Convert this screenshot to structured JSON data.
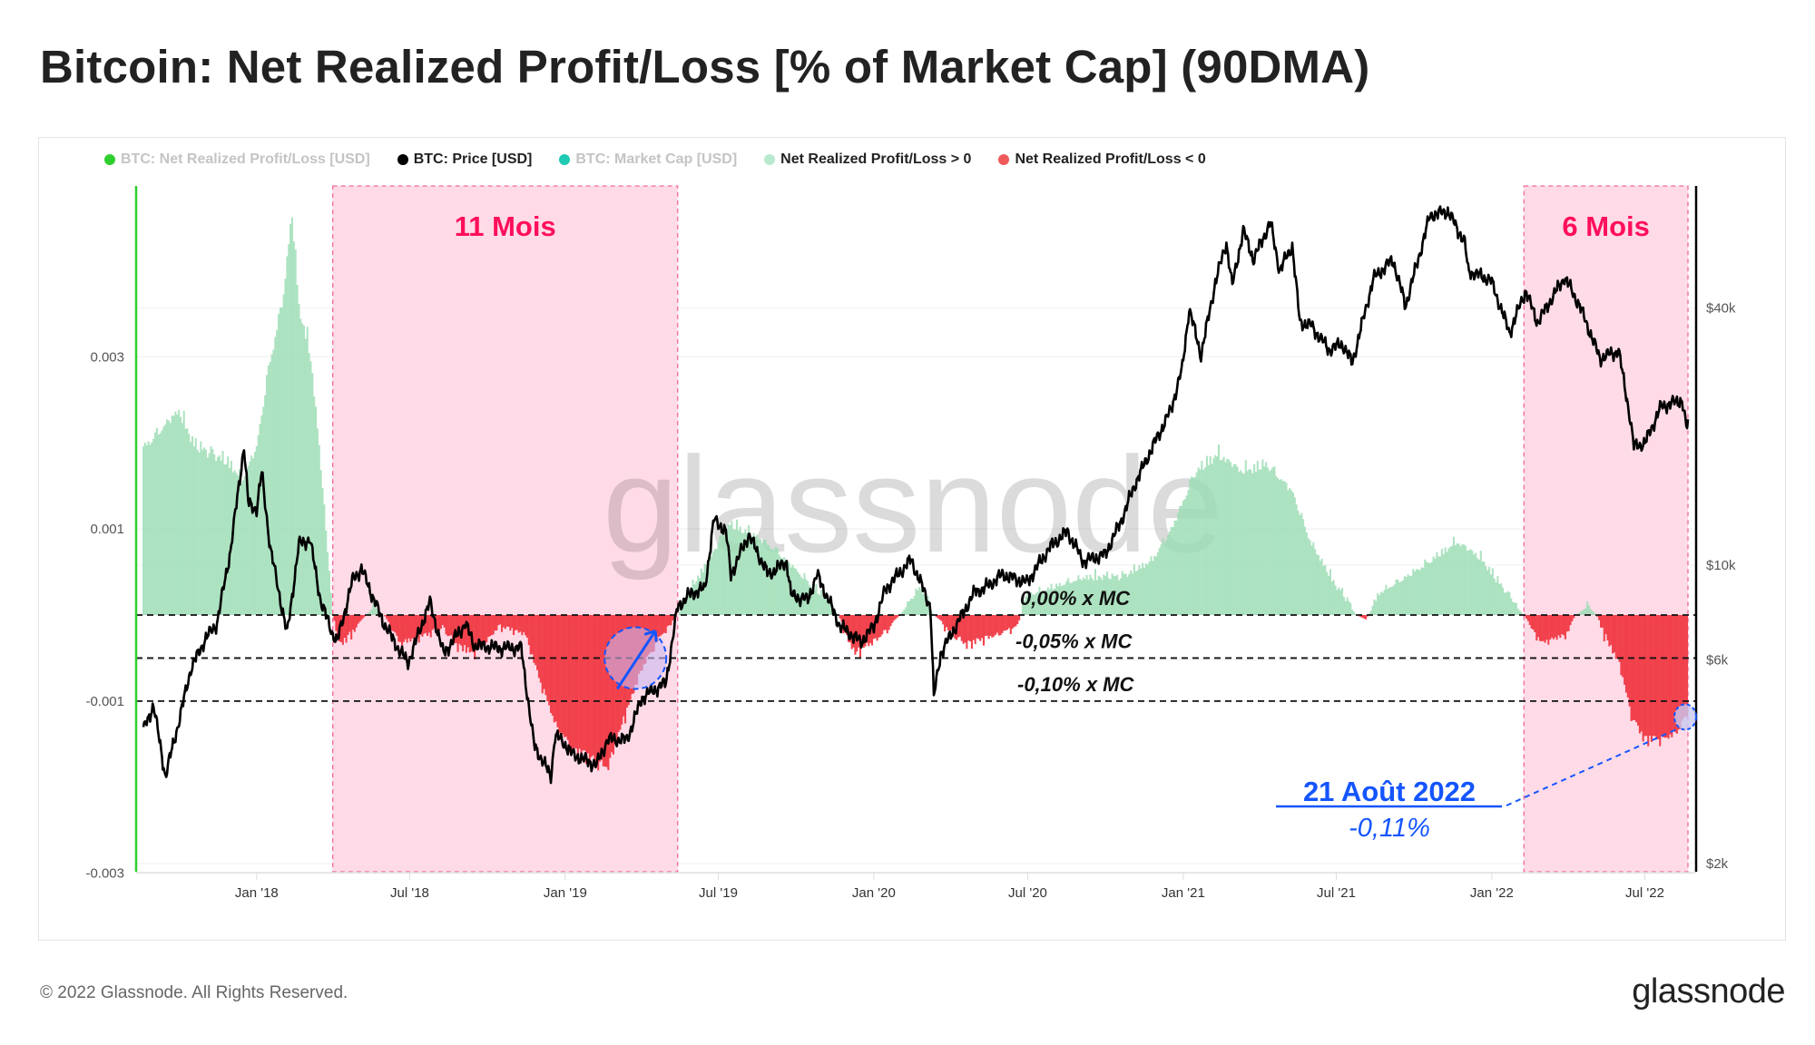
{
  "title": "Bitcoin: Net Realized Profit/Loss [% of Market Cap] (90DMA)",
  "legend": [
    {
      "label": "BTC: Net Realized Profit/Loss [USD]",
      "color": "#2fcf2f",
      "muted": true
    },
    {
      "label": "BTC: Price [USD]",
      "color": "#000000",
      "muted": false
    },
    {
      "label": "BTC: Market Cap [USD]",
      "color": "#1fc9b4",
      "muted": true
    },
    {
      "label": "Net Realized Profit/Loss > 0",
      "color": "#b9ead0",
      "muted": false
    },
    {
      "label": "Net Realized Profit/Loss < 0",
      "color": "#f05a5a",
      "muted": false
    }
  ],
  "watermark": "glassnode",
  "footer": {
    "copyright": "© 2022 Glassnode. All Rights Reserved.",
    "logo": "glassnode"
  },
  "annotations": {
    "periods": [
      {
        "label": "11 Mois",
        "start": "2018-04-01",
        "end": "2019-05-14"
      },
      {
        "label": "6 Mois",
        "start": "2022-02-08",
        "end": "2022-08-21"
      }
    ],
    "levels": [
      {
        "label": "0,00% x MC",
        "value": 0
      },
      {
        "label": "-0,05% x MC",
        "value": -0.0005
      },
      {
        "label": "-0,10% x MC",
        "value": -0.001
      }
    ],
    "callout": {
      "date_label": "21 Août 2022",
      "value_label": "-0,11%",
      "date": "2022-08-21",
      "value": -0.0011
    },
    "highlight_circle": {
      "date": "2019-03-25",
      "value": -0.0005
    }
  },
  "colors": {
    "positive": "#9adcb3",
    "negative": "#f03a44",
    "price": "#000000",
    "period_fill": "#ffd9e7",
    "period_border": "#f06a9a",
    "period_label": "#ff0f5b",
    "annotation": "#1455ff"
  },
  "chart_data": {
    "type": "bar+line",
    "x_range": [
      "2017-08-20",
      "2022-08-21"
    ],
    "x_ticks": [
      {
        "label": "Jan '18",
        "date": "2018-01-01"
      },
      {
        "label": "Jul '18",
        "date": "2018-07-01"
      },
      {
        "label": "Jan '19",
        "date": "2019-01-01"
      },
      {
        "label": "Jul '19",
        "date": "2019-07-01"
      },
      {
        "label": "Jan '20",
        "date": "2020-01-01"
      },
      {
        "label": "Jul '20",
        "date": "2020-07-01"
      },
      {
        "label": "Jan '21",
        "date": "2021-01-01"
      },
      {
        "label": "Jul '21",
        "date": "2021-07-01"
      },
      {
        "label": "Jan '22",
        "date": "2022-01-01"
      },
      {
        "label": "Jul '22",
        "date": "2022-07-01"
      }
    ],
    "y_left": {
      "ticks": [
        {
          "label": "0.003",
          "value": 0.003
        },
        {
          "label": "0.001",
          "value": 0.001
        },
        {
          "label": "-0.001",
          "value": -0.001
        },
        {
          "label": "-0.003",
          "value": -0.003
        }
      ]
    },
    "y_right": {
      "scale": "log",
      "ticks": [
        {
          "label": "$40k",
          "value": 40000
        },
        {
          "label": "$10k",
          "value": 10000
        },
        {
          "label": "$6k",
          "value": 6000
        },
        {
          "label": "$2k",
          "value": 2000
        }
      ]
    },
    "grid": true,
    "series": [
      {
        "name": "BTC: Price [USD]",
        "axis": "right",
        "type": "line",
        "points": [
          [
            "2017-08-20",
            4100
          ],
          [
            "2017-09-01",
            4700
          ],
          [
            "2017-09-15",
            3200
          ],
          [
            "2017-10-01",
            4300
          ],
          [
            "2017-10-15",
            5700
          ],
          [
            "2017-11-01",
            6700
          ],
          [
            "2017-11-15",
            7300
          ],
          [
            "2017-12-01",
            10800
          ],
          [
            "2017-12-17",
            19000
          ],
          [
            "2017-12-22",
            14000
          ],
          [
            "2018-01-01",
            13500
          ],
          [
            "2018-01-07",
            16500
          ],
          [
            "2018-01-17",
            11000
          ],
          [
            "2018-02-06",
            6900
          ],
          [
            "2018-02-20",
            11200
          ],
          [
            "2018-03-05",
            11500
          ],
          [
            "2018-03-18",
            8200
          ],
          [
            "2018-04-01",
            6900
          ],
          [
            "2018-04-06",
            6600
          ],
          [
            "2018-04-25",
            9300
          ],
          [
            "2018-05-05",
            9800
          ],
          [
            "2018-05-30",
            7400
          ],
          [
            "2018-06-15",
            6500
          ],
          [
            "2018-06-29",
            5900
          ],
          [
            "2018-07-25",
            8200
          ],
          [
            "2018-08-10",
            6200
          ],
          [
            "2018-09-05",
            7300
          ],
          [
            "2018-09-15",
            6500
          ],
          [
            "2018-10-15",
            6400
          ],
          [
            "2018-11-10",
            6400
          ],
          [
            "2018-11-20",
            4500
          ],
          [
            "2018-11-25",
            3800
          ],
          [
            "2018-12-15",
            3200
          ],
          [
            "2018-12-20",
            4000
          ],
          [
            "2019-01-01",
            3800
          ],
          [
            "2019-01-10",
            3600
          ],
          [
            "2019-02-07",
            3400
          ],
          [
            "2019-02-20",
            3900
          ],
          [
            "2019-03-15",
            3900
          ],
          [
            "2019-04-02",
            4900
          ],
          [
            "2019-04-30",
            5300
          ],
          [
            "2019-05-14",
            8000
          ],
          [
            "2019-05-30",
            8600
          ],
          [
            "2019-06-15",
            8800
          ],
          [
            "2019-06-26",
            12800
          ],
          [
            "2019-07-10",
            12000
          ],
          [
            "2019-07-16",
            9500
          ],
          [
            "2019-08-06",
            11800
          ],
          [
            "2019-08-29",
            9500
          ],
          [
            "2019-09-20",
            10200
          ],
          [
            "2019-09-25",
            8500
          ],
          [
            "2019-10-15",
            8300
          ],
          [
            "2019-10-26",
            9500
          ],
          [
            "2019-11-22",
            7200
          ],
          [
            "2019-12-17",
            6600
          ],
          [
            "2020-01-01",
            7200
          ],
          [
            "2020-01-15",
            8800
          ],
          [
            "2020-02-14",
            10300
          ],
          [
            "2020-03-08",
            8000
          ],
          [
            "2020-03-12",
            4900
          ],
          [
            "2020-03-20",
            6200
          ],
          [
            "2020-04-30",
            8700
          ],
          [
            "2020-05-10",
            8800
          ],
          [
            "2020-06-01",
            9500
          ],
          [
            "2020-06-30",
            9100
          ],
          [
            "2020-07-27",
            11000
          ],
          [
            "2020-08-17",
            12000
          ],
          [
            "2020-09-05",
            10200
          ],
          [
            "2020-10-01",
            10600
          ],
          [
            "2020-10-21",
            12900
          ],
          [
            "2020-11-05",
            15500
          ],
          [
            "2020-11-25",
            18800
          ],
          [
            "2020-12-17",
            23000
          ],
          [
            "2020-12-31",
            29000
          ],
          [
            "2021-01-08",
            40000
          ],
          [
            "2021-01-22",
            31000
          ],
          [
            "2021-02-08",
            46000
          ],
          [
            "2021-02-21",
            57000
          ],
          [
            "2021-02-28",
            45000
          ],
          [
            "2021-03-13",
            61000
          ],
          [
            "2021-03-25",
            52000
          ],
          [
            "2021-04-14",
            63500
          ],
          [
            "2021-04-25",
            49000
          ],
          [
            "2021-05-10",
            56000
          ],
          [
            "2021-05-19",
            37000
          ],
          [
            "2021-06-01",
            36500
          ],
          [
            "2021-06-22",
            32000
          ],
          [
            "2021-07-08",
            33000
          ],
          [
            "2021-07-20",
            29800
          ],
          [
            "2021-08-14",
            47000
          ],
          [
            "2021-09-06",
            52000
          ],
          [
            "2021-09-21",
            40500
          ],
          [
            "2021-10-20",
            66000
          ],
          [
            "2021-11-10",
            67500
          ],
          [
            "2021-11-30",
            57000
          ],
          [
            "2021-12-04",
            49000
          ],
          [
            "2021-12-31",
            46500
          ],
          [
            "2022-01-22",
            35000
          ],
          [
            "2022-02-10",
            44000
          ],
          [
            "2022-02-24",
            37000
          ],
          [
            "2022-03-28",
            47300
          ],
          [
            "2022-04-15",
            40500
          ],
          [
            "2022-05-09",
            30500
          ],
          [
            "2022-05-31",
            31800
          ],
          [
            "2022-06-13",
            22500
          ],
          [
            "2022-06-18",
            19000
          ],
          [
            "2022-07-01",
            19300
          ],
          [
            "2022-07-20",
            23500
          ],
          [
            "2022-08-14",
            24400
          ],
          [
            "2022-08-19",
            21000
          ],
          [
            "2022-08-21",
            21500
          ]
        ]
      },
      {
        "name": "Net Realized Profit/Loss [% of Market Cap] (90DMA)",
        "axis": "left",
        "type": "bar",
        "points": [
          [
            "2017-08-20",
            0.0019
          ],
          [
            "2017-09-10",
            0.0021
          ],
          [
            "2017-10-01",
            0.0023
          ],
          [
            "2017-10-20",
            0.0019
          ],
          [
            "2017-11-10",
            0.0018
          ],
          [
            "2017-12-01",
            0.0017
          ],
          [
            "2017-12-15",
            0.0015
          ],
          [
            "2018-01-01",
            0.0019
          ],
          [
            "2018-01-15",
            0.0028
          ],
          [
            "2018-02-01",
            0.0036
          ],
          [
            "2018-02-12",
            0.0046
          ],
          [
            "2018-02-20",
            0.0035
          ],
          [
            "2018-03-05",
            0.003
          ],
          [
            "2018-03-15",
            0.002
          ],
          [
            "2018-03-25",
            0.0008
          ],
          [
            "2018-04-01",
            0.0
          ],
          [
            "2018-04-10",
            -0.0003
          ],
          [
            "2018-05-01",
            -0.0001
          ],
          [
            "2018-05-20",
            0.0001
          ],
          [
            "2018-06-01",
            0.0
          ],
          [
            "2018-06-20",
            -0.0003
          ],
          [
            "2018-07-20",
            -0.0002
          ],
          [
            "2018-08-10",
            -0.0001
          ],
          [
            "2018-08-25",
            -0.0003
          ],
          [
            "2018-09-15",
            -0.0004
          ],
          [
            "2018-10-15",
            -0.0001
          ],
          [
            "2018-11-15",
            -0.0002
          ],
          [
            "2018-12-01",
            -0.0007
          ],
          [
            "2018-12-20",
            -0.0012
          ],
          [
            "2019-01-10",
            -0.0015
          ],
          [
            "2019-02-01",
            -0.0016
          ],
          [
            "2019-02-20",
            -0.0017
          ],
          [
            "2019-03-10",
            -0.0012
          ],
          [
            "2019-04-01",
            -0.0006
          ],
          [
            "2019-04-25",
            -0.0002
          ],
          [
            "2019-05-14",
            0.0
          ],
          [
            "2019-06-01",
            0.0003
          ],
          [
            "2019-06-20",
            0.0006
          ],
          [
            "2019-07-15",
            0.001
          ],
          [
            "2019-08-10",
            0.0009
          ],
          [
            "2019-09-10",
            0.0007
          ],
          [
            "2019-10-10",
            0.0004
          ],
          [
            "2019-11-01",
            0.0002
          ],
          [
            "2019-11-20",
            0.0
          ],
          [
            "2019-12-10",
            -0.0004
          ],
          [
            "2020-01-10",
            -0.0002
          ],
          [
            "2020-02-01",
            0.0
          ],
          [
            "2020-02-25",
            0.0003
          ],
          [
            "2020-03-12",
            0.0
          ],
          [
            "2020-03-25",
            -0.0001
          ],
          [
            "2020-04-20",
            -0.0003
          ],
          [
            "2020-05-20",
            -0.0002
          ],
          [
            "2020-06-20",
            -0.0001
          ],
          [
            "2020-06-28",
            0.0002
          ],
          [
            "2020-08-01",
            0.0003
          ],
          [
            "2020-09-15",
            0.0004
          ],
          [
            "2020-10-20",
            0.0004
          ],
          [
            "2020-11-25",
            0.0006
          ],
          [
            "2020-12-20",
            0.001
          ],
          [
            "2021-01-15",
            0.0016
          ],
          [
            "2021-02-10",
            0.0018
          ],
          [
            "2021-03-10",
            0.0016
          ],
          [
            "2021-04-10",
            0.0017
          ],
          [
            "2021-05-10",
            0.0014
          ],
          [
            "2021-06-01",
            0.0008
          ],
          [
            "2021-07-01",
            0.0003
          ],
          [
            "2021-07-25",
            0.0
          ],
          [
            "2021-08-05",
            -5e-05
          ],
          [
            "2021-08-20",
            0.0002
          ],
          [
            "2021-09-20",
            0.0004
          ],
          [
            "2021-10-20",
            0.0006
          ],
          [
            "2021-11-20",
            0.0008
          ],
          [
            "2021-12-20",
            0.0006
          ],
          [
            "2022-01-20",
            0.0002
          ],
          [
            "2022-02-08",
            0.0
          ],
          [
            "2022-03-01",
            -0.0003
          ],
          [
            "2022-03-30",
            -0.0002
          ],
          [
            "2022-04-10",
            0.0
          ],
          [
            "2022-04-25",
            0.0001
          ],
          [
            "2022-05-05",
            0.0
          ],
          [
            "2022-05-20",
            -0.0003
          ],
          [
            "2022-06-01",
            -0.0005
          ],
          [
            "2022-06-15",
            -0.0011
          ],
          [
            "2022-07-01",
            -0.0014
          ],
          [
            "2022-07-25",
            -0.0014
          ],
          [
            "2022-08-10",
            -0.0013
          ],
          [
            "2022-08-21",
            -0.0011
          ]
        ]
      }
    ]
  }
}
